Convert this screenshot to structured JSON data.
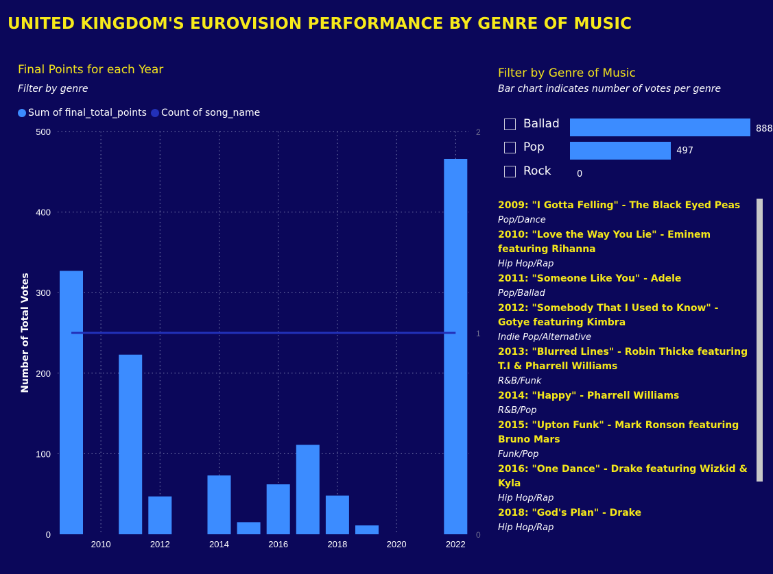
{
  "page_title": "UNITED KINGDOM'S EUROVISION PERFORMANCE BY GENRE OF MUSIC",
  "chart_panel": {
    "title": "Final Points for each Year",
    "subtitle": "Filter by genre"
  },
  "colors": {
    "bar": "#3c8cff",
    "line": "#2230b8",
    "accent": "#f5e81a",
    "background": "#0b075a"
  },
  "chart_data": {
    "type": "bar",
    "legend": [
      "Sum of final_total_points",
      "Count of song_name"
    ],
    "legend_position": "top-left",
    "ylabel": "Number of Total Votes",
    "xlabel": "",
    "x_ticks": [
      "2010",
      "2012",
      "2014",
      "2016",
      "2018",
      "2020",
      "2022"
    ],
    "y_ticks": [
      "0",
      "100",
      "200",
      "300",
      "400",
      "500"
    ],
    "y2_ticks": [
      "0",
      "1",
      "2"
    ],
    "ylim": [
      0,
      500
    ],
    "y2lim": [
      0,
      2
    ],
    "grid": true,
    "series": [
      {
        "name": "Sum of final_total_points",
        "type": "bar",
        "x": [
          2009,
          2011,
          2012,
          2014,
          2015,
          2016,
          2017,
          2018,
          2019,
          2022
        ],
        "values": [
          327,
          223,
          47,
          73,
          15,
          62,
          111,
          48,
          11,
          466
        ]
      },
      {
        "name": "Count of song_name",
        "type": "line",
        "x": [
          2009,
          2022
        ],
        "values": [
          1,
          1
        ]
      }
    ]
  },
  "genre_panel": {
    "title": "Filter by Genre of Music",
    "subtitle": "Bar chart indicates number of votes per genre",
    "genres": [
      {
        "label": "Ballad",
        "value": 888,
        "value_label": "888"
      },
      {
        "label": "Pop",
        "value": 497,
        "value_label": "497"
      },
      {
        "label": "Rock",
        "value": 0,
        "value_label": "0"
      }
    ]
  },
  "songs": [
    {
      "title": "2009: \"I Gotta Felling\" - The Black Eyed Peas",
      "genre": "Pop/Dance"
    },
    {
      "title": "2010: \"Love the Way You Lie\" - Eminem featuring Rihanna",
      "genre": "Hip Hop/Rap"
    },
    {
      "title": "2011: \"Someone Like You\" - Adele",
      "genre": "Pop/Ballad"
    },
    {
      "title": "2012: \"Somebody That I Used to Know\" - Gotye featuring Kimbra",
      "genre": "Indie Pop/Alternative"
    },
    {
      "title": "2013: \"Blurred Lines\" - Robin Thicke featuring T.I & Pharrell Williams",
      "genre": "R&B/Funk"
    },
    {
      "title": "2014: \"Happy\" - Pharrell Williams",
      "genre": "R&B/Pop"
    },
    {
      "title": "2015: \"Upton Funk\" - Mark Ronson featuring Bruno Mars",
      "genre": "Funk/Pop"
    },
    {
      "title": "2016: \"One Dance\" - Drake featuring Wizkid & Kyla",
      "genre": "Hip Hop/Rap"
    },
    {
      "title": "2018: \"God's Plan\" - Drake",
      "genre": "Hip Hop/Rap"
    }
  ]
}
